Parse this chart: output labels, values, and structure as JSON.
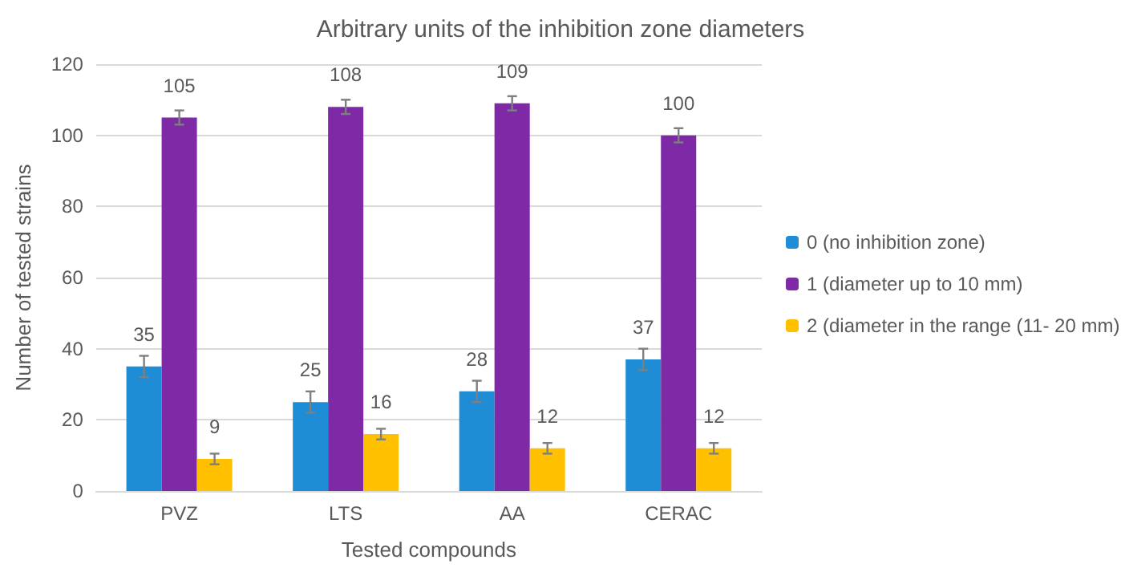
{
  "chart_data": {
    "type": "bar",
    "title": "Arbitrary units of the inhibition zone diameters",
    "xlabel": "Tested compounds",
    "ylabel": "Number of tested strains",
    "categories": [
      "PVZ",
      "LTS",
      "AA",
      "CERAC"
    ],
    "series": [
      {
        "name": "0 (no inhibition zone)",
        "color": "#1f8dd6",
        "values": [
          35,
          25,
          28,
          37
        ],
        "errors": [
          3,
          3,
          3,
          3
        ]
      },
      {
        "name": "1 (diameter up to 10 mm)",
        "color": "#7e2aa6",
        "values": [
          105,
          108,
          109,
          100
        ],
        "errors": [
          2,
          2,
          2,
          2
        ]
      },
      {
        "name": "2 (diameter in the range (11- 20 mm)",
        "color": "#ffc000",
        "values": [
          9,
          16,
          12,
          12
        ],
        "errors": [
          1.5,
          1.5,
          1.5,
          1.5
        ]
      }
    ],
    "ylim": [
      0,
      120
    ],
    "yticks": [
      0,
      20,
      40,
      60,
      80,
      100,
      120
    ],
    "grid": "y",
    "legend": "right",
    "data_labels": true
  }
}
